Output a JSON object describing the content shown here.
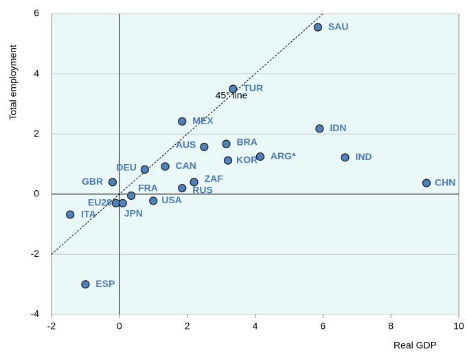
{
  "chart_data": {
    "type": "scatter",
    "x_label": "Real GDP",
    "y_label": "Total employment",
    "annotation": "45° line",
    "color": "#4f81bd",
    "label_color": "#4a7ab8",
    "points": [
      {
        "name": "SAU",
        "x": 5.85,
        "y": 5.55
      },
      {
        "name": "TUR",
        "x": 3.35,
        "y": 3.5
      },
      {
        "name": "MEX",
        "x": 1.85,
        "y": 2.42
      },
      {
        "name": "IDN",
        "x": 5.9,
        "y": 2.18
      },
      {
        "name": "BRA",
        "x": 3.15,
        "y": 1.67
      },
      {
        "name": "AUS",
        "x": 2.5,
        "y": 1.57
      },
      {
        "name": "KOR",
        "x": 3.2,
        "y": 1.12
      },
      {
        "name": "ARG*",
        "x": 4.15,
        "y": 1.25
      },
      {
        "name": "IND",
        "x": 6.65,
        "y": 1.22
      },
      {
        "name": "CAN",
        "x": 1.35,
        "y": 0.92
      },
      {
        "name": "DEU",
        "x": 0.75,
        "y": 0.82
      },
      {
        "name": "GBR",
        "x": -0.2,
        "y": 0.4
      },
      {
        "name": "ZAF",
        "x": 2.2,
        "y": 0.4
      },
      {
        "name": "RUS",
        "x": 1.85,
        "y": 0.2
      },
      {
        "name": "CHN",
        "x": 9.05,
        "y": 0.37
      },
      {
        "name": "FRA",
        "x": 0.35,
        "y": -0.05
      },
      {
        "name": "EU28",
        "x": -0.1,
        "y": -0.3
      },
      {
        "name": "JPN",
        "x": 0.1,
        "y": -0.3
      },
      {
        "name": "USA",
        "x": 1.0,
        "y": -0.22
      },
      {
        "name": "ITA",
        "x": -1.45,
        "y": -0.68
      },
      {
        "name": "ESP",
        "x": -1.0,
        "y": -3.0
      }
    ],
    "xlim": [
      -2,
      10
    ],
    "ylim": [
      -4,
      6
    ],
    "xticks": [
      -2,
      0,
      2,
      4,
      6,
      8,
      10
    ],
    "yticks": [
      -4,
      -2,
      0,
      2,
      4,
      6
    ],
    "grid": true
  }
}
